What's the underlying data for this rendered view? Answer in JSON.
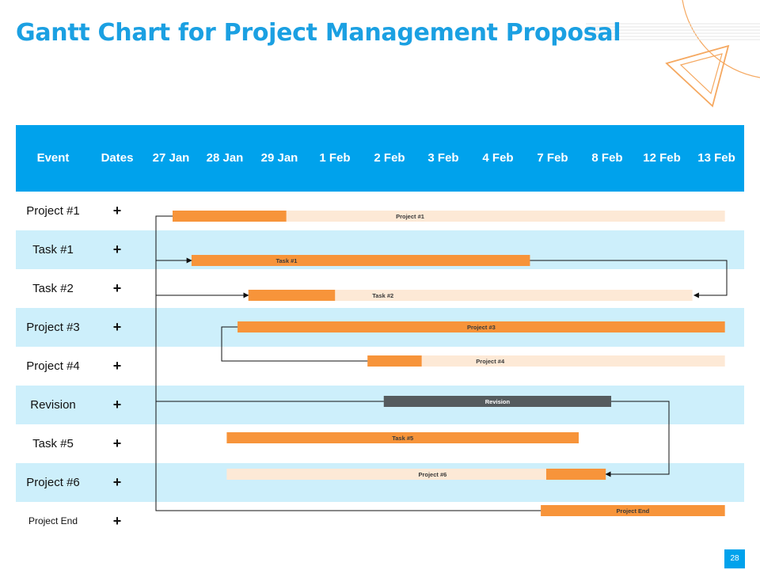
{
  "title": "Gantt Chart for Project Management Proposal",
  "page_number": "28",
  "header": {
    "event_label": "Event",
    "dates_label": "Dates",
    "dates": [
      "27 Jan",
      "28 Jan",
      "29 Jan",
      "1 Feb",
      "2 Feb",
      "3 Feb",
      "4 Feb",
      "7 Feb",
      "8 Feb",
      "12 Feb",
      "13 Feb"
    ]
  },
  "rows": [
    {
      "event": "Project #1",
      "action": "+"
    },
    {
      "event": "Task #1",
      "action": "+"
    },
    {
      "event": "Task #2",
      "action": "+"
    },
    {
      "event": "Project #3",
      "action": "+"
    },
    {
      "event": "Project #4",
      "action": "+"
    },
    {
      "event": "Revision",
      "action": "+"
    },
    {
      "event": "Task #5",
      "action": "+"
    },
    {
      "event": "Project #6",
      "action": "+"
    },
    {
      "event": "Project End",
      "action": "+"
    }
  ],
  "colors": {
    "header": "#00a2ec",
    "title": "#1ba0e2",
    "row_alt": "#cdeffb",
    "bar_progress": "#f7943a",
    "bar_remaining": "#fde9d6",
    "bar_revision": "#555b5e",
    "decor": "#f5a860"
  },
  "chart_data": {
    "type": "gantt",
    "categories": [
      "27 Jan",
      "28 Jan",
      "29 Jan",
      "1 Feb",
      "2 Feb",
      "3 Feb",
      "4 Feb",
      "7 Feb",
      "8 Feb",
      "12 Feb",
      "13 Feb"
    ],
    "tasks": [
      {
        "name": "Project #1",
        "start": 27.0,
        "end": 37.2,
        "progress_end": 29.1,
        "style": "split"
      },
      {
        "name": "Task #1",
        "start": 27.35,
        "end": 33.6,
        "progress_end": 33.6,
        "style": "solid"
      },
      {
        "name": "Task #2",
        "start": 28.4,
        "end": 36.6,
        "progress_end": 30.0,
        "style": "split"
      },
      {
        "name": "Project #3",
        "start": 28.2,
        "end": 37.2,
        "progress_end": 37.2,
        "style": "solid"
      },
      {
        "name": "Project #4",
        "start": 30.6,
        "end": 37.2,
        "progress_end": 31.6,
        "style": "split"
      },
      {
        "name": "Revision",
        "start": 30.9,
        "end": 35.1,
        "progress_end": 35.1,
        "style": "revision"
      },
      {
        "name": "Task #5",
        "start": 28.0,
        "end": 34.5,
        "progress_end": 34.5,
        "style": "solid"
      },
      {
        "name": "Project #6",
        "start": 28.0,
        "end": 35.0,
        "progress_start": 33.9,
        "progress_end": 35.0,
        "style": "split-late"
      },
      {
        "name": "Project End",
        "start": 33.8,
        "end": 37.2,
        "progress_end": 37.2,
        "style": "solid"
      }
    ],
    "dependencies": [
      {
        "from": "Project #1",
        "to": "Task #1"
      },
      {
        "from": "Project #1",
        "to": "Task #2"
      },
      {
        "from": "Task #1",
        "to": "Task #2"
      },
      {
        "from": "Project #3",
        "to": "Project #4"
      },
      {
        "from": "Revision",
        "to": "Project #6"
      },
      {
        "from": "Project #1",
        "to": "Project End"
      }
    ]
  }
}
